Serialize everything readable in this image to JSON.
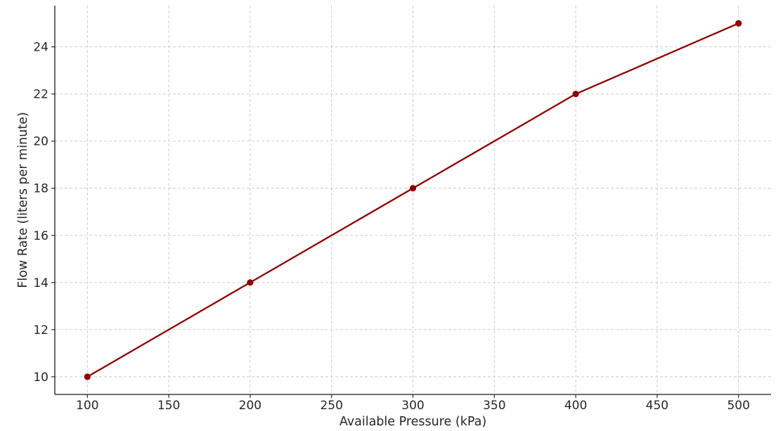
{
  "chart_data": {
    "type": "line",
    "title": "",
    "xlabel": "Available Pressure (kPa)",
    "ylabel": "Flow Rate (liters per minute)",
    "x": [
      100,
      200,
      300,
      400,
      500
    ],
    "series": [
      {
        "values": [
          10,
          14,
          18,
          22,
          25
        ],
        "color": "#8b0000",
        "marker": "circle"
      }
    ],
    "xlim": [
      80,
      520
    ],
    "ylim": [
      9.25,
      25.75
    ],
    "xticks": [
      100,
      150,
      200,
      250,
      300,
      350,
      400,
      450,
      500
    ],
    "yticks": [
      10,
      12,
      14,
      16,
      18,
      20,
      22,
      24
    ],
    "grid": true,
    "grid_style": "dashed",
    "legend": "none"
  }
}
